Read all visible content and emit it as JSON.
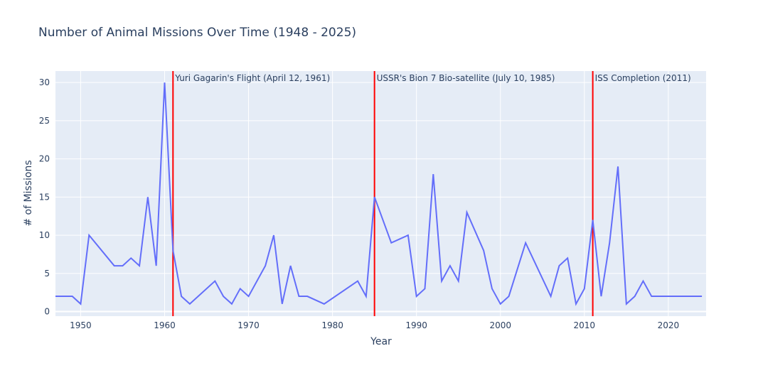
{
  "chart_data": {
    "type": "line",
    "title": "Number of Animal Missions Over Time (1948 - 2025)",
    "xlabel": "Year",
    "ylabel": "# of Missions",
    "xlim": [
      1947,
      2024.5
    ],
    "ylim": [
      -0.6,
      31.5
    ],
    "x_ticks": [
      1950,
      1960,
      1970,
      1980,
      1990,
      2000,
      2010,
      2020
    ],
    "y_ticks": [
      0,
      5,
      10,
      15,
      20,
      25,
      30
    ],
    "grid": true,
    "line_color": "#636efa",
    "plot_bg": "#e5ecf6",
    "series": [
      {
        "x": [
          1947,
          1949,
          1950,
          1951,
          1954,
          1955,
          1956,
          1957,
          1958,
          1959,
          1960,
          1961,
          1962,
          1963,
          1966,
          1967,
          1968,
          1969,
          1970,
          1972,
          1973,
          1974,
          1975,
          1976,
          1977,
          1979,
          1983,
          1984,
          1985,
          1987,
          1989,
          1990,
          1991,
          1992,
          1993,
          1994,
          1995,
          1996,
          1998,
          1999,
          2000,
          2001,
          2003,
          2006,
          2007,
          2008,
          2009,
          2010,
          2011,
          2012,
          2013,
          2014,
          2015,
          2016,
          2017,
          2018,
          2020,
          2024
        ],
        "values": [
          2,
          2,
          1,
          10,
          6,
          6,
          7,
          6,
          15,
          6,
          30,
          8,
          2,
          1,
          4,
          2,
          1,
          3,
          2,
          6,
          10,
          1,
          6,
          2,
          2,
          1,
          4,
          2,
          15,
          9,
          10,
          2,
          3,
          18,
          4,
          6,
          4,
          13,
          8,
          3,
          1,
          2,
          9,
          2,
          6,
          7,
          1,
          3,
          12,
          2,
          9,
          19,
          1,
          2,
          4,
          2,
          2,
          2
        ]
      }
    ],
    "markers": [
      {
        "x": 1961,
        "label": "Yuri Gagarin's Flight (April 12, 1961)",
        "color": "#ff0000"
      },
      {
        "x": 1985,
        "label": "USSR's Bion 7 Bio-satellite (July 10, 1985)",
        "color": "#ff0000"
      },
      {
        "x": 2011,
        "label": "ISS Completion (2011)",
        "color": "#ff0000"
      }
    ]
  }
}
